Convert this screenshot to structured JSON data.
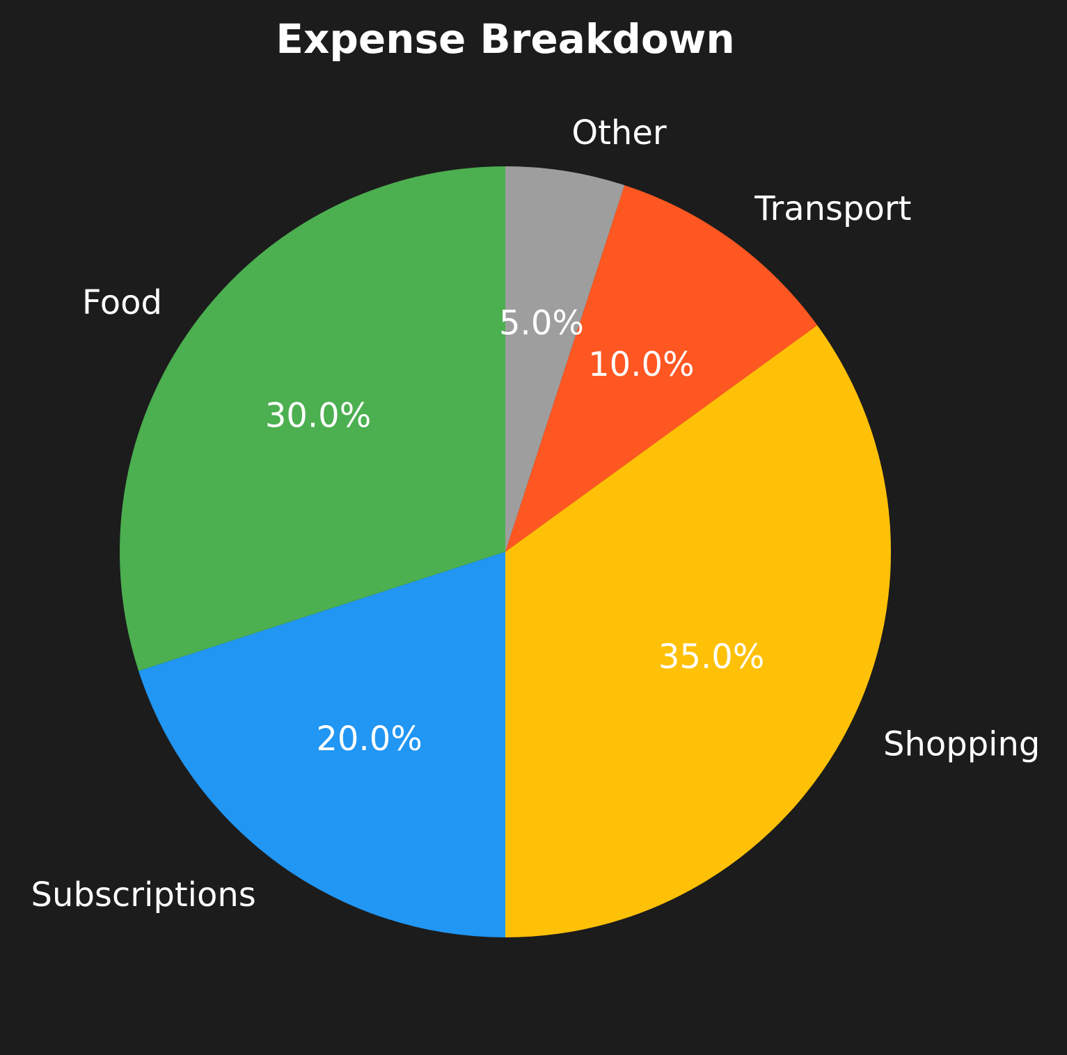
{
  "chart_data": {
    "type": "pie",
    "title": "Expense Breakdown",
    "start_angle_deg": 90,
    "direction": "counterclockwise",
    "slices": [
      {
        "label": "Food",
        "value": 30.0,
        "pct_label": "30.0%",
        "color": "#4caf50"
      },
      {
        "label": "Subscriptions",
        "value": 20.0,
        "pct_label": "20.0%",
        "color": "#2196f3"
      },
      {
        "label": "Shopping",
        "value": 35.0,
        "pct_label": "35.0%",
        "color": "#ffc107"
      },
      {
        "label": "Transport",
        "value": 10.0,
        "pct_label": "10.0%",
        "color": "#ff5722"
      },
      {
        "label": "Other",
        "value": 5.0,
        "pct_label": "5.0%",
        "color": "#9e9e9e"
      }
    ],
    "background": "#1c1c1c",
    "text_color": "#ffffff"
  }
}
